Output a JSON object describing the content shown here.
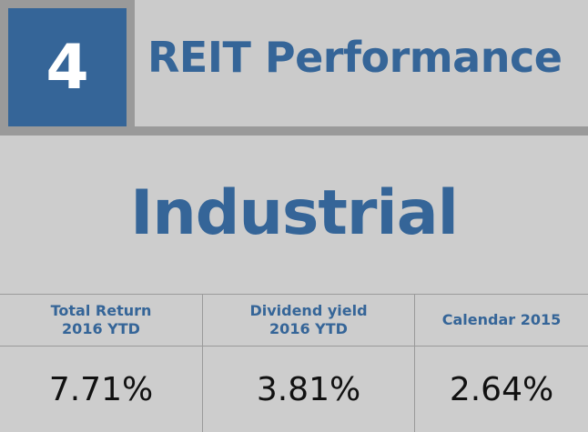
{
  "header": {
    "number": "4",
    "title": "REIT Performance"
  },
  "category": "Industrial",
  "table": {
    "columns": [
      {
        "line1": "Total Return",
        "line2": "2016 YTD",
        "value": "7.71%"
      },
      {
        "line1": "Dividend yield",
        "line2": "2016 YTD",
        "value": "3.81%"
      },
      {
        "line1": "Calendar 2015",
        "line2": "",
        "value": "2.64%"
      }
    ]
  },
  "colors": {
    "accent": "#356598",
    "frame": "#9a9a9a",
    "background": "#cdcdcd"
  }
}
